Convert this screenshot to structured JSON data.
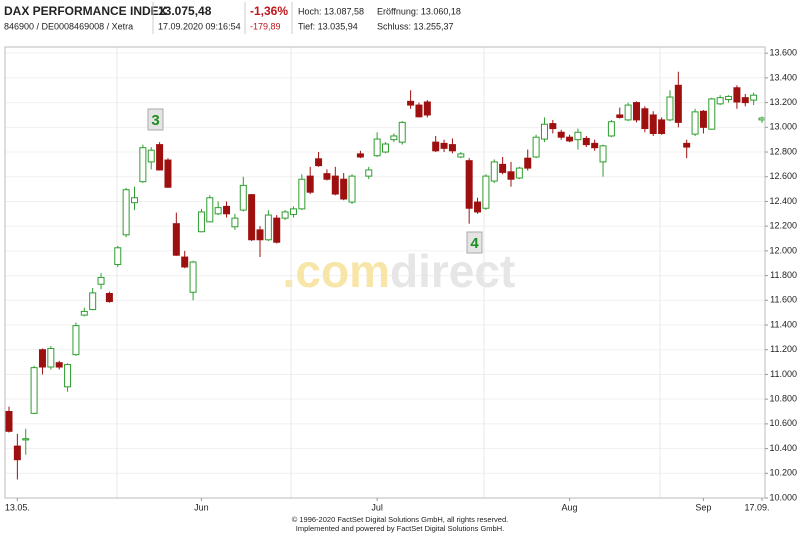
{
  "header": {
    "title": "DAX PERFORMANCE INDEX",
    "subtitle": "846900 / DE0008469008 / Xetra",
    "price": "13.075,48",
    "timestamp": "17.09.2020 09:16:54",
    "change_pct": "-1,36%",
    "change_abs": "-179,89",
    "high": "Hoch: 13.087,58",
    "open": "Eröffnung: 13.060,18",
    "low": "Tief: 13.035,94",
    "close": "Schluss: 13.255,37"
  },
  "chart_data": {
    "type": "candlestick",
    "categories": [
      null,
      "13.05.",
      null,
      null,
      null,
      null,
      null,
      null,
      null,
      null,
      null,
      null,
      null,
      null,
      null,
      null,
      null,
      null,
      null,
      null,
      null,
      null,
      null,
      "Jun",
      null,
      null,
      null,
      null,
      null,
      null,
      null,
      null,
      null,
      null,
      null,
      null,
      null,
      null,
      null,
      null,
      null,
      null,
      null,
      null,
      "Jul",
      null,
      null,
      null,
      null,
      null,
      null,
      null,
      null,
      null,
      null,
      null,
      null,
      null,
      null,
      null,
      null,
      null,
      null,
      null,
      null,
      null,
      null,
      "Aug",
      null,
      null,
      null,
      null,
      null,
      null,
      null,
      null,
      null,
      null,
      null,
      null,
      null,
      null,
      null,
      "Sep",
      null,
      null,
      null,
      null,
      null,
      null,
      "17.09."
    ],
    "open": [
      10700,
      10420,
      10470,
      10685,
      11200,
      11060,
      11095,
      10900,
      11160,
      11480,
      11525,
      11730,
      11655,
      11890,
      12130,
      12390,
      12560,
      12720,
      12860,
      12735,
      12220,
      11950,
      11665,
      12155,
      12235,
      12300,
      12360,
      12195,
      12330,
      12455,
      12170,
      12090,
      12265,
      12265,
      12295,
      12340,
      12605,
      12745,
      12625,
      12605,
      12580,
      12395,
      12785,
      12605,
      12770,
      12800,
      12900,
      12880,
      13210,
      13180,
      13205,
      12880,
      12870,
      12860,
      12760,
      12730,
      12395,
      12345,
      12565,
      12700,
      12640,
      12590,
      12750,
      12760,
      12905,
      13030,
      12960,
      12920,
      12900,
      12910,
      12870,
      12720,
      12930,
      13100,
      13060,
      13200,
      13150,
      13100,
      13060,
      13060,
      13340,
      12870,
      12945,
      13130,
      12985,
      13190,
      13225,
      13320,
      13240,
      13220,
      13060
    ],
    "high": [
      10740,
      10520,
      10560,
      11070,
      11210,
      11230,
      11110,
      11090,
      11420,
      11540,
      11700,
      11820,
      11670,
      12040,
      12510,
      12520,
      12860,
      12840,
      12880,
      12750,
      12310,
      12000,
      11920,
      12340,
      12450,
      12400,
      12400,
      12300,
      12600,
      12460,
      12200,
      12330,
      12290,
      12330,
      12360,
      12620,
      12680,
      12800,
      12660,
      12680,
      12630,
      12620,
      12810,
      12680,
      12960,
      12880,
      12950,
      13050,
      13300,
      13200,
      13220,
      12930,
      12900,
      12910,
      12800,
      12750,
      12430,
      12620,
      12740,
      12760,
      12720,
      12680,
      12820,
      12940,
      13080,
      13060,
      12980,
      12940,
      12990,
      12930,
      12900,
      12860,
      13060,
      13160,
      13200,
      13210,
      13170,
      13130,
      13080,
      13300,
      13450,
      12900,
      13150,
      13140,
      13240,
      13260,
      13260,
      13340,
      13270,
      13280,
      13088
    ],
    "low": [
      10530,
      10150,
      10350,
      10680,
      11000,
      11040,
      11040,
      10860,
      11150,
      11470,
      11520,
      11690,
      11580,
      11870,
      12110,
      12330,
      12550,
      12660,
      12650,
      12510,
      11960,
      11860,
      11600,
      12150,
      12230,
      12290,
      12270,
      12170,
      12320,
      12080,
      11950,
      12080,
      12060,
      12250,
      12270,
      12330,
      12460,
      12680,
      12570,
      12450,
      12410,
      12380,
      12750,
      12580,
      12760,
      12790,
      12880,
      12860,
      13150,
      13080,
      13080,
      12800,
      12800,
      12790,
      12750,
      12220,
      12300,
      12330,
      12550,
      12620,
      12520,
      12580,
      12650,
      12750,
      12880,
      12950,
      12900,
      12880,
      12820,
      12840,
      12810,
      12600,
      12920,
      13070,
      13050,
      13040,
      12960,
      12930,
      12940,
      13050,
      13000,
      12750,
      12930,
      12950,
      12980,
      13180,
      13200,
      13150,
      13170,
      13180,
      13036
    ],
    "close": [
      10540,
      10310,
      10480,
      11055,
      11060,
      11210,
      11060,
      11080,
      11395,
      11510,
      11660,
      11785,
      11590,
      12025,
      12495,
      12430,
      12835,
      12815,
      12655,
      12515,
      11965,
      11870,
      11910,
      12315,
      12430,
      12350,
      12300,
      12265,
      12530,
      12090,
      12090,
      12290,
      12070,
      12315,
      12340,
      12580,
      12475,
      12690,
      12580,
      12460,
      12420,
      12605,
      12760,
      12655,
      12905,
      12865,
      12930,
      13040,
      13180,
      13085,
      13100,
      12810,
      12830,
      12810,
      12785,
      12345,
      12315,
      12605,
      12720,
      12635,
      12580,
      12670,
      12670,
      12920,
      13025,
      12990,
      12920,
      12890,
      12960,
      12860,
      12835,
      12850,
      13045,
      13080,
      13180,
      13060,
      12990,
      12950,
      12950,
      13245,
      13040,
      12840,
      13125,
      13000,
      13230,
      13240,
      13250,
      13205,
      13200,
      13260,
      13075
    ],
    "up_color": "#2e9e2e",
    "down_color": "#9e1010",
    "ylim": [
      10000,
      13650
    ],
    "yticks": [
      {
        "value": 10000,
        "label": "10.000"
      },
      {
        "value": 10200,
        "label": "10.200"
      },
      {
        "value": 10400,
        "label": "10.400"
      },
      {
        "value": 10600,
        "label": "10.600"
      },
      {
        "value": 10800,
        "label": "10.800"
      },
      {
        "value": 11000,
        "label": "11.000"
      },
      {
        "value": 11200,
        "label": "11.200"
      },
      {
        "value": 11400,
        "label": "11.400"
      },
      {
        "value": 11600,
        "label": "11.600"
      },
      {
        "value": 11800,
        "label": "11.800"
      },
      {
        "value": 12000,
        "label": "12.000"
      },
      {
        "value": 12200,
        "label": "12.200"
      },
      {
        "value": 12400,
        "label": "12.400"
      },
      {
        "value": 12600,
        "label": "12.600"
      },
      {
        "value": 12800,
        "label": "12.800"
      },
      {
        "value": 13000,
        "label": "13.000"
      },
      {
        "value": 13200,
        "label": "13.200"
      },
      {
        "value": 13400,
        "label": "13.400"
      },
      {
        "value": 13600,
        "label": "13.600"
      }
    ],
    "grid": true,
    "annotations": [
      "3",
      "4"
    ],
    "watermark": [
      ".com",
      "direct"
    ]
  },
  "footer": [
    "© 1996-2020 FactSet Digital Solutions GmbH, all rights reserved.",
    "Implemented and powered by FactSet Digital Solutions GmbH."
  ]
}
